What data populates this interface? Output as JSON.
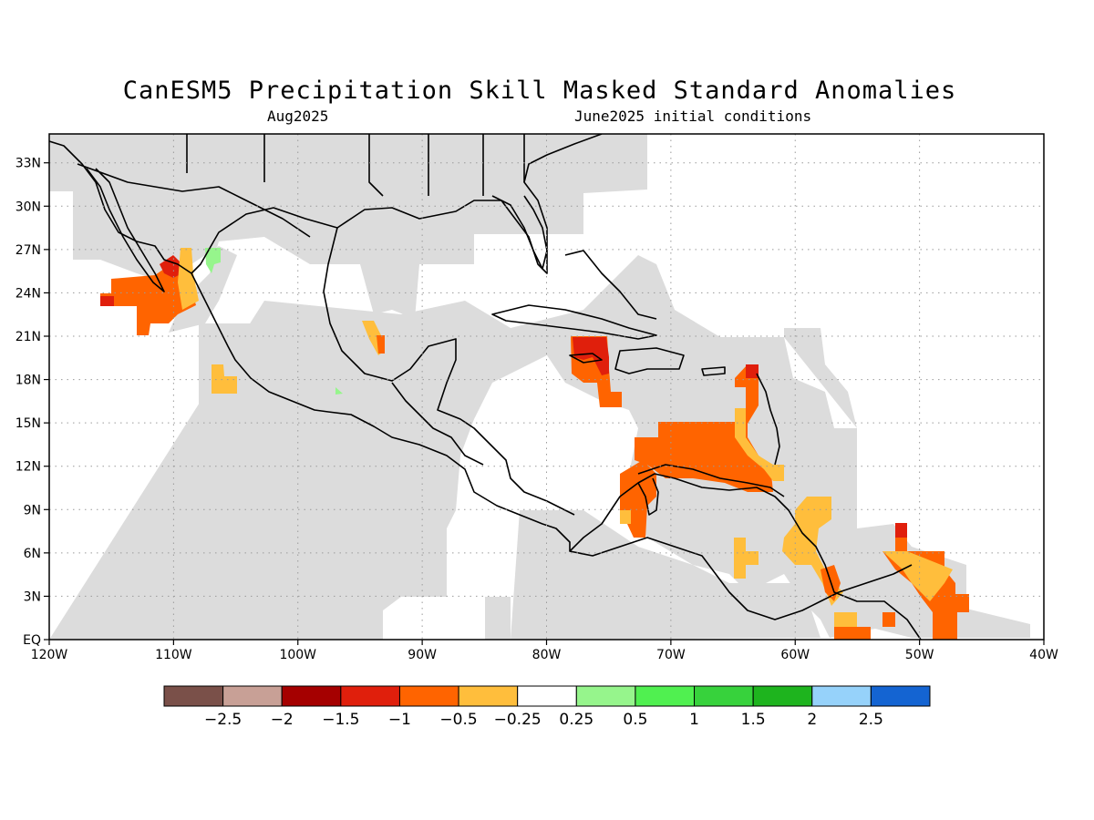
{
  "title": "CanESM5 Precipitation Skill Masked Standard Anomalies",
  "subtitle_left": "Aug2025",
  "subtitle_right": "June2025 initial conditions",
  "map": {
    "lon_range": [
      -120,
      -40
    ],
    "lat_range": [
      0,
      35
    ],
    "x_ticks": [
      {
        "lon": -120,
        "label": "120W"
      },
      {
        "lon": -110,
        "label": "110W"
      },
      {
        "lon": -100,
        "label": "100W"
      },
      {
        "lon": -90,
        "label": "90W"
      },
      {
        "lon": -80,
        "label": "80W"
      },
      {
        "lon": -70,
        "label": "70W"
      },
      {
        "lon": -60,
        "label": "60W"
      },
      {
        "lon": -50,
        "label": "50W"
      },
      {
        "lon": -40,
        "label": "40W"
      }
    ],
    "y_ticks": [
      {
        "lat": 0,
        "label": "EQ"
      },
      {
        "lat": 3,
        "label": "3N"
      },
      {
        "lat": 6,
        "label": "6N"
      },
      {
        "lat": 9,
        "label": "9N"
      },
      {
        "lat": 12,
        "label": "12N"
      },
      {
        "lat": 15,
        "label": "15N"
      },
      {
        "lat": 18,
        "label": "18N"
      },
      {
        "lat": 21,
        "label": "21N"
      },
      {
        "lat": 24,
        "label": "24N"
      },
      {
        "lat": 27,
        "label": "27N"
      },
      {
        "lat": 30,
        "label": "30N"
      },
      {
        "lat": 33,
        "label": "33N"
      }
    ],
    "mask_color": "#dcdcdc",
    "coast_color": "#000000"
  },
  "colorbar": {
    "colors": [
      "#7a5049",
      "#c8a096",
      "#a50000",
      "#e01f0c",
      "#ff6400",
      "#ffbe3c",
      "#ffffff",
      "#96f58c",
      "#50f050",
      "#37d23c",
      "#1eb41e",
      "#96d2fa",
      "#1464d2"
    ],
    "labels": [
      "-2.5",
      "-2",
      "-1.5",
      "-1",
      "-0.5",
      "-0.25",
      "0.25",
      "0.5",
      "1",
      "1.5",
      "2",
      "2.5"
    ]
  },
  "anomalies": [
    {
      "name": "baja-south-anomaly",
      "level": "-0.5",
      "color": "#ff6400"
    },
    {
      "name": "baja-strong-anomaly",
      "level": "-1",
      "color": "#e01f0c"
    },
    {
      "name": "hispaniola-anomaly",
      "level": "-1",
      "color": "#e01f0c"
    },
    {
      "name": "caribbean-central-anomaly",
      "level": "-0.5",
      "color": "#ff6400"
    },
    {
      "name": "colombia-coast-anomaly",
      "level": "-0.5",
      "color": "#ff6400"
    },
    {
      "name": "lesser-antilles-anomaly",
      "level": "-0.5",
      "color": "#ff6400"
    },
    {
      "name": "guiana-anomaly",
      "level": "-0.25",
      "color": "#ffbe3c"
    },
    {
      "name": "brazil-ne-anomaly",
      "level": "-0.5",
      "color": "#ff6400"
    },
    {
      "name": "gulf-of-california-positive",
      "level": "0.5",
      "color": "#96f58c"
    }
  ]
}
